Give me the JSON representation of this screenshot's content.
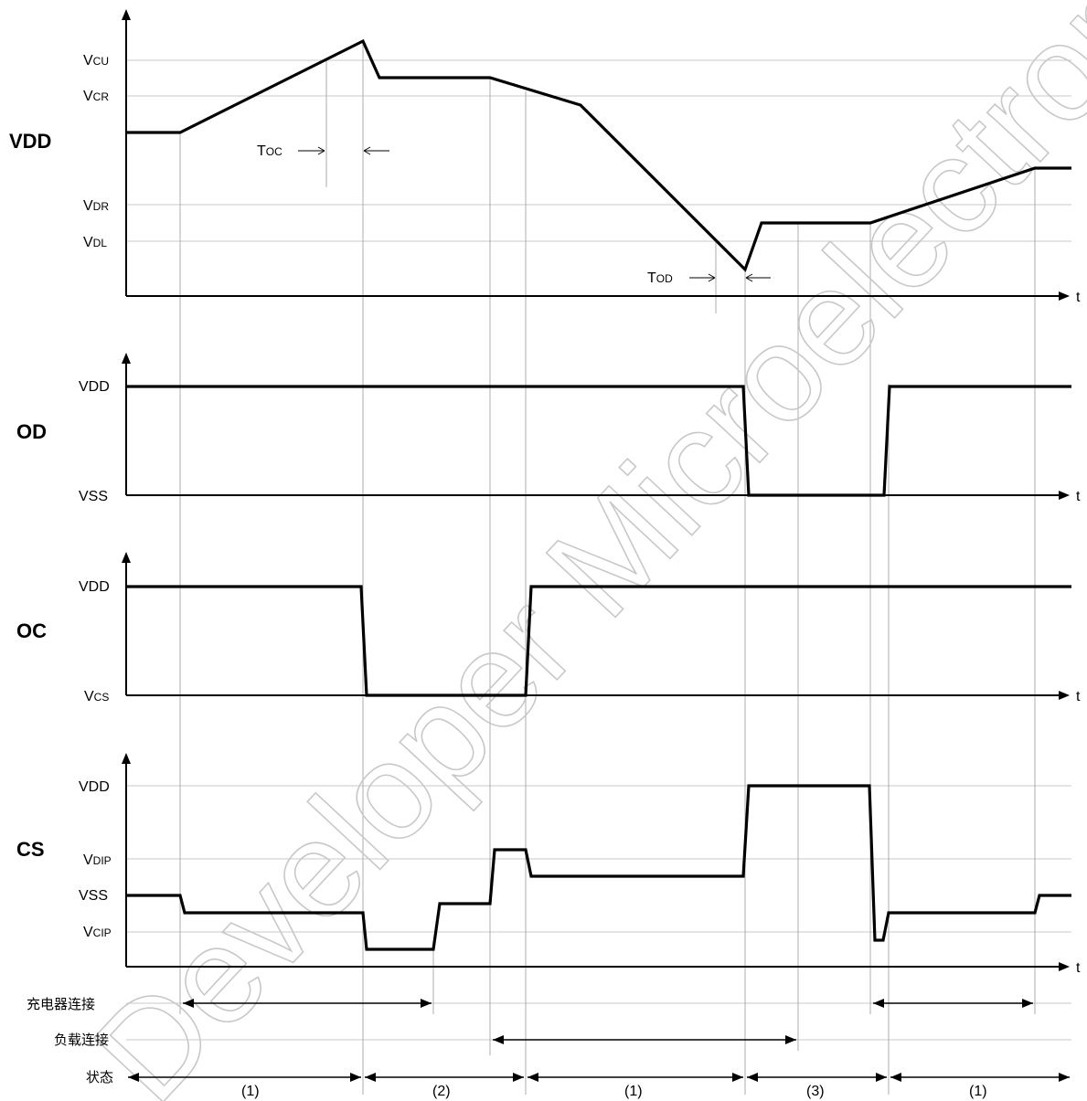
{
  "watermark": "Developer Microelectronics Confidential",
  "time_axis_label": "t",
  "panels": {
    "vdd": {
      "name": "VDD",
      "levels": {
        "vcu": {
          "main": "V",
          "sub": "CU"
        },
        "vcr": {
          "main": "V",
          "sub": "CR"
        },
        "vdr": {
          "main": "V",
          "sub": "DR"
        },
        "vdl": {
          "main": "V",
          "sub": "DL"
        }
      },
      "toc": {
        "main": "T",
        "sub": "OC"
      },
      "tod": {
        "main": "T",
        "sub": "OD"
      }
    },
    "od": {
      "name": "OD",
      "high": "VDD",
      "low": "VSS"
    },
    "oc": {
      "name": "OC",
      "high": "VDD",
      "low": {
        "main": "V",
        "sub": "CS"
      }
    },
    "cs": {
      "name": "CS",
      "vdd": "VDD",
      "vdip": {
        "main": "V",
        "sub": "DIP"
      },
      "vss": "VSS",
      "vcip": {
        "main": "V",
        "sub": "CIP"
      }
    }
  },
  "rows": {
    "charger": "充电器连接",
    "load": "负载连接",
    "state": "状态"
  },
  "states": [
    "(1)",
    "(2)",
    "(1)",
    "(3)",
    "(1)"
  ]
}
